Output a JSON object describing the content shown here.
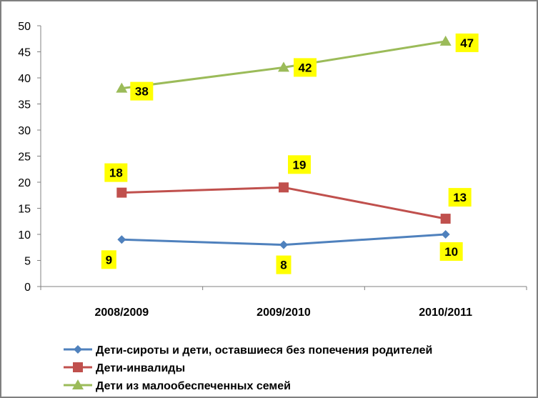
{
  "chart_data": {
    "type": "line",
    "categories": [
      "2008/2009",
      "2009/2010",
      "2010/2011"
    ],
    "ylim": [
      0,
      50
    ],
    "yticks": [
      0,
      5,
      10,
      15,
      20,
      25,
      30,
      35,
      40,
      45,
      50
    ],
    "grid": false,
    "legend_position": "bottom",
    "data_label_background": "#ffff00",
    "series": [
      {
        "name": "Дети-сироты и дети, оставшиеся без попечения родителей",
        "values": [
          9,
          8,
          10
        ],
        "color": "#4f81bd",
        "marker": "diamond"
      },
      {
        "name": "Дети-инвалиды",
        "values": [
          18,
          19,
          13
        ],
        "color": "#c0504d",
        "marker": "square"
      },
      {
        "name": "Дети из малообеспеченных семей",
        "values": [
          38,
          42,
          47
        ],
        "color": "#9bbb59",
        "marker": "triangle"
      }
    ]
  }
}
